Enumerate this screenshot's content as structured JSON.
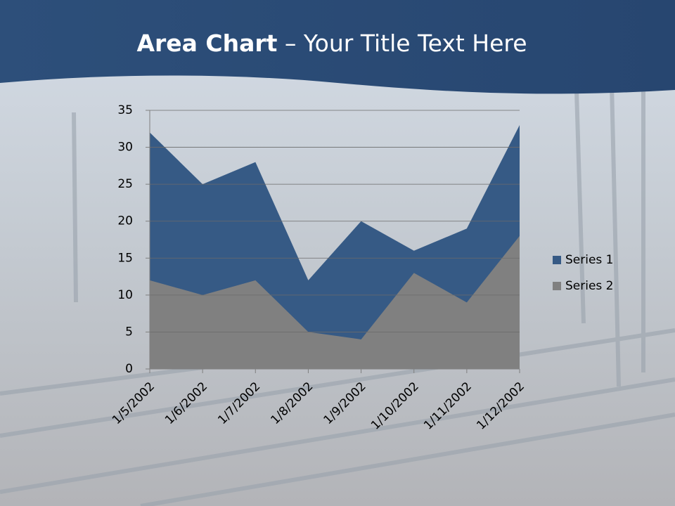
{
  "chart_data": {
    "type": "area",
    "title": [
      "Area Chart",
      " – Your Title Text Here"
    ],
    "categories": [
      "1/5/2002",
      "1/6/2002",
      "1/7/2002",
      "1/8/2002",
      "1/9/2002",
      "1/10/2002",
      "1/11/2002",
      "1/12/2002"
    ],
    "series": [
      {
        "name": "Series 1",
        "color": "#365a85",
        "values": [
          32,
          25,
          28,
          12,
          20,
          16,
          19,
          33
        ]
      },
      {
        "name": "Series 2",
        "color": "#808080",
        "values": [
          12,
          10,
          12,
          5,
          4,
          13,
          9,
          18
        ]
      }
    ],
    "ylim": [
      0,
      35
    ],
    "yticks": [
      0,
      5,
      10,
      15,
      20,
      25,
      30,
      35
    ],
    "grid": true,
    "legend": "right"
  }
}
